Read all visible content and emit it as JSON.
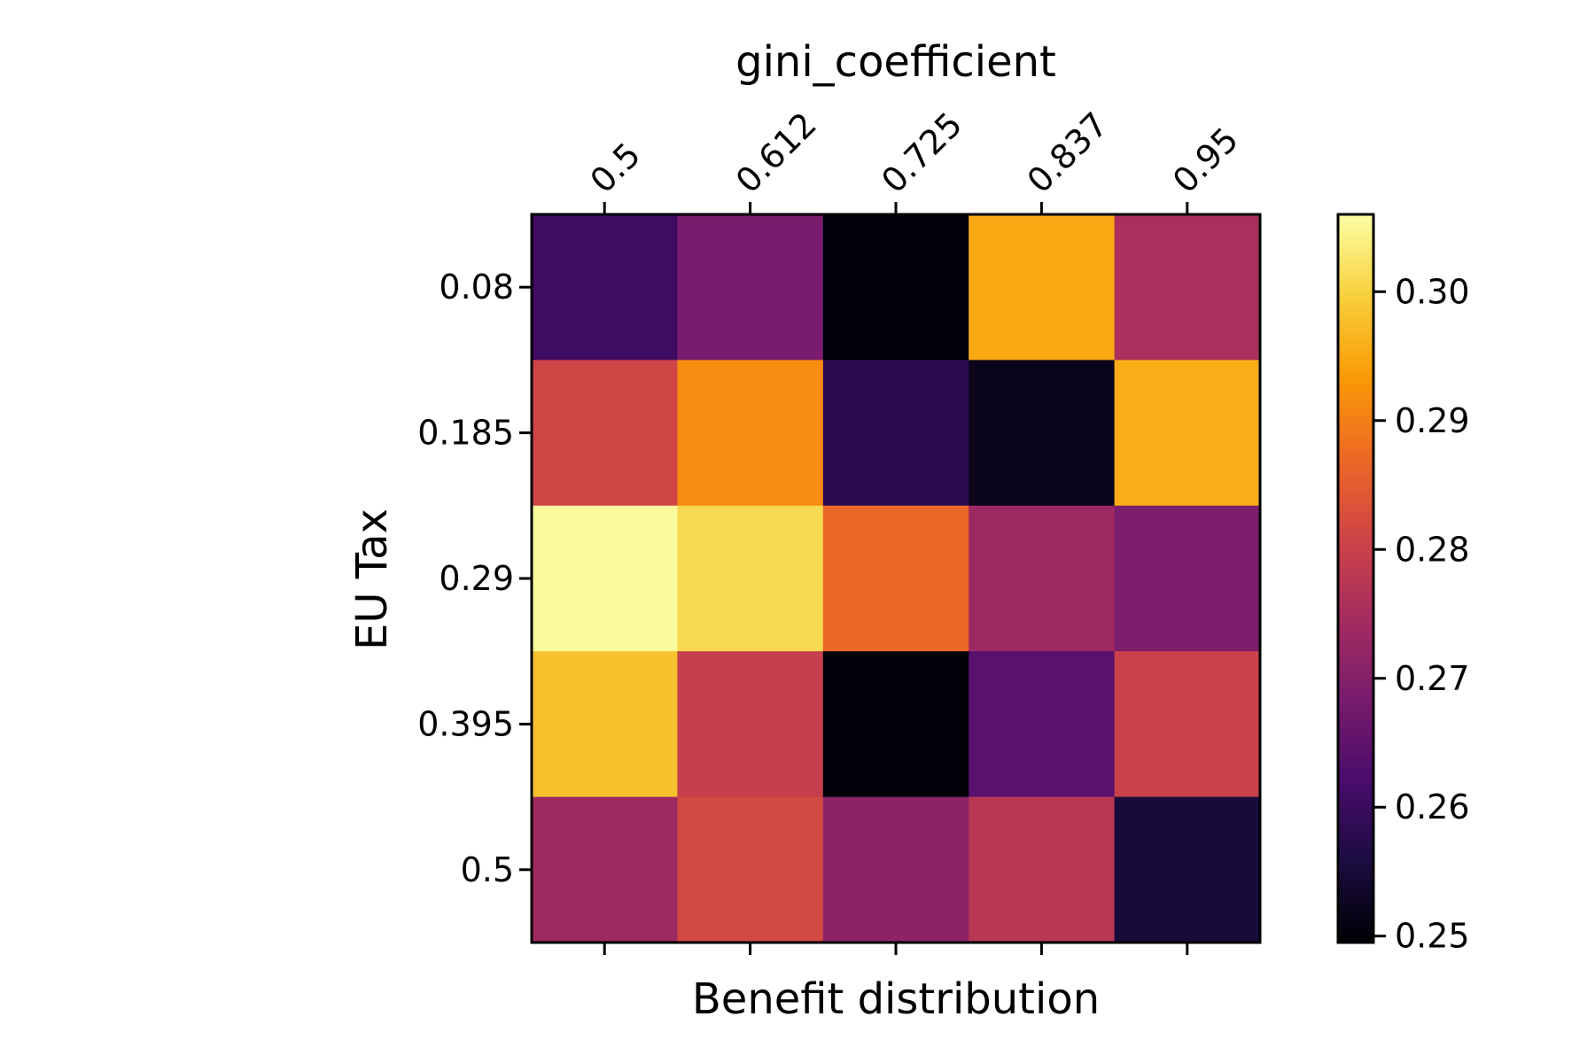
{
  "chart_data": {
    "type": "heatmap",
    "title": "gini_coefficient",
    "xlabel": "Benefit distribution",
    "ylabel": "EU Tax",
    "x_tick_labels": [
      "0.5",
      "0.612",
      "0.725",
      "0.837",
      "0.95"
    ],
    "y_tick_labels": [
      "0.08",
      "0.185",
      "0.29",
      "0.395",
      "0.5"
    ],
    "values": [
      [
        0.2605,
        0.2685,
        0.25,
        0.295,
        0.2755
      ],
      [
        0.281,
        0.2915,
        0.258,
        0.252,
        0.2955
      ],
      [
        0.3055,
        0.301,
        0.287,
        0.2735,
        0.269
      ],
      [
        0.298,
        0.2795,
        0.25,
        0.264,
        0.28
      ],
      [
        0.2735,
        0.2815,
        0.271,
        0.2775,
        0.255
      ]
    ],
    "colormap": "inferno",
    "colorbar": {
      "range": [
        0.2495,
        0.306
      ],
      "ticks": [
        0.25,
        0.26,
        0.27,
        0.28,
        0.29,
        0.3
      ],
      "tick_labels": [
        "0.25",
        "0.26",
        "0.27",
        "0.28",
        "0.29",
        "0.30"
      ]
    },
    "grid": false
  },
  "colormap_stops": [
    "#000004",
    "#1b0c41",
    "#4a0c6b",
    "#781c6d",
    "#a52c60",
    "#cf4446",
    "#ed6925",
    "#fb9b06",
    "#f7d13d",
    "#fcffa4"
  ]
}
